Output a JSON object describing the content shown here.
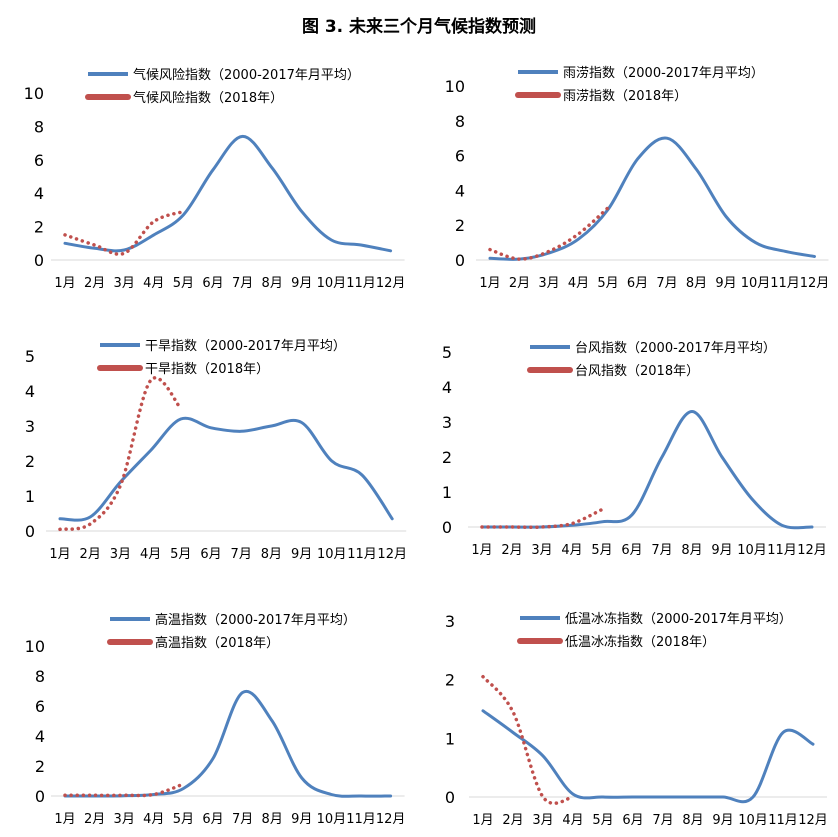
{
  "title": "图 3. 未来三个月气候指数预测",
  "colors": {
    "avg": "#4f81bd",
    "y2018": "#c0504d"
  },
  "chart_data": [
    {
      "type": "line",
      "categories": [
        "1月",
        "2月",
        "3月",
        "4月",
        "5月",
        "6月",
        "7月",
        "8月",
        "9月",
        "10月",
        "11月",
        "12月"
      ],
      "ylim": [
        0,
        10
      ],
      "yticks": [
        0,
        2,
        4,
        6,
        8,
        10
      ],
      "series": [
        {
          "name": "气候风险指数（2000-2017年月平均）",
          "values": [
            1.0,
            0.7,
            0.6,
            1.5,
            2.7,
            5.4,
            7.4,
            5.5,
            2.9,
            1.2,
            0.9,
            0.55
          ]
        },
        {
          "name": "气候风险指数（2018年）",
          "values": [
            1.5,
            0.9,
            0.4,
            2.3,
            2.9,
            null,
            null,
            null,
            null,
            null,
            null,
            null
          ]
        }
      ]
    },
    {
      "type": "line",
      "categories": [
        "1月",
        "2月",
        "3月",
        "4月",
        "5月",
        "6月",
        "7月",
        "8月",
        "9月",
        "10月",
        "11月",
        "12月"
      ],
      "ylim": [
        0,
        10
      ],
      "yticks": [
        0,
        2,
        4,
        6,
        8,
        10
      ],
      "series": [
        {
          "name": "雨涝指数（2000-2017年月平均）",
          "values": [
            0.1,
            0.05,
            0.4,
            1.2,
            2.9,
            5.8,
            7.0,
            5.2,
            2.5,
            1.0,
            0.5,
            0.2
          ]
        },
        {
          "name": "雨涝指数（2018年）",
          "values": [
            0.6,
            0.05,
            0.5,
            1.5,
            3.0,
            null,
            null,
            null,
            null,
            null,
            null,
            null
          ]
        }
      ]
    },
    {
      "type": "line",
      "categories": [
        "1月",
        "2月",
        "3月",
        "4月",
        "5月",
        "6月",
        "7月",
        "8月",
        "9月",
        "10月",
        "11月",
        "12月"
      ],
      "ylim": [
        0,
        5
      ],
      "yticks": [
        0,
        1,
        2,
        3,
        4,
        5
      ],
      "series": [
        {
          "name": "干旱指数（2000-2017年月平均）",
          "values": [
            0.35,
            0.4,
            1.4,
            2.3,
            3.2,
            2.95,
            2.85,
            3.0,
            3.1,
            2.0,
            1.6,
            0.35
          ]
        },
        {
          "name": "干旱指数（2018年）",
          "values": [
            0.05,
            0.2,
            1.3,
            4.3,
            3.5,
            null,
            null,
            null,
            null,
            null,
            null,
            null
          ]
        }
      ]
    },
    {
      "type": "line",
      "categories": [
        "1月",
        "2月",
        "3月",
        "4月",
        "5月",
        "6月",
        "7月",
        "8月",
        "9月",
        "10月",
        "11月",
        "12月"
      ],
      "ylim": [
        0,
        5
      ],
      "yticks": [
        0,
        1,
        2,
        3,
        4,
        5
      ],
      "series": [
        {
          "name": "台风指数（2000-2017年月平均）",
          "values": [
            0,
            0,
            0,
            0.05,
            0.15,
            0.35,
            2.0,
            3.3,
            2.0,
            0.8,
            0.05,
            0
          ]
        },
        {
          "name": "台风指数（2018年）",
          "values": [
            0,
            0,
            0,
            0.1,
            0.5,
            null,
            null,
            null,
            null,
            null,
            null,
            null
          ]
        }
      ]
    },
    {
      "type": "line",
      "categories": [
        "1月",
        "2月",
        "3月",
        "4月",
        "5月",
        "6月",
        "7月",
        "8月",
        "9月",
        "10月",
        "11月",
        "12月"
      ],
      "ylim": [
        0,
        10
      ],
      "yticks": [
        0,
        2,
        4,
        6,
        8,
        10
      ],
      "series": [
        {
          "name": "高温指数（2000-2017年月平均）",
          "values": [
            0,
            0,
            0.02,
            0.1,
            0.5,
            2.5,
            6.9,
            5.0,
            1.2,
            0.1,
            0,
            0
          ]
        },
        {
          "name": "高温指数（2018年）",
          "values": [
            0.05,
            0.05,
            0.05,
            0.1,
            0.8,
            null,
            null,
            null,
            null,
            null,
            null,
            null
          ]
        }
      ]
    },
    {
      "type": "line",
      "categories": [
        "1月",
        "2月",
        "3月",
        "4月",
        "5月",
        "6月",
        "7月",
        "8月",
        "9月",
        "10月",
        "11月",
        "12月"
      ],
      "ylim": [
        0,
        3
      ],
      "yticks": [
        0,
        1,
        2,
        3
      ],
      "series": [
        {
          "name": "低温冰冻指数（2000-2017年月平均）",
          "values": [
            1.47,
            1.1,
            0.7,
            0.05,
            0,
            0,
            0,
            0,
            0,
            0,
            1.1,
            0.9
          ]
        },
        {
          "name": "低温冰冻指数（2018年）",
          "values": [
            2.05,
            1.45,
            0.0,
            0,
            null,
            null,
            null,
            null,
            null,
            null,
            null,
            null
          ]
        }
      ]
    }
  ]
}
